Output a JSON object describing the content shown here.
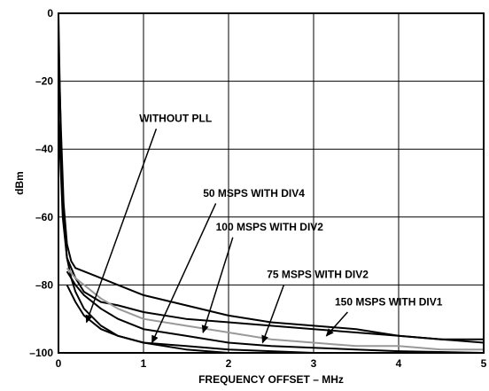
{
  "chart_data": {
    "type": "line",
    "xlabel": "FREQUENCY OFFSET – MHz",
    "ylabel": "dBm",
    "xlim": [
      0,
      5
    ],
    "ylim": [
      -100,
      0
    ],
    "x_ticks": [
      0,
      1,
      2,
      3,
      4,
      5
    ],
    "x_tick_labels": [
      "0",
      "1",
      "2",
      "3",
      "4",
      "5"
    ],
    "y_ticks": [
      0,
      -20,
      -40,
      -60,
      -80,
      -100
    ],
    "y_tick_labels": [
      "0",
      "–20",
      "–40",
      "–60",
      "–80",
      "–100"
    ],
    "grid": true,
    "colors": {
      "black": "#000000",
      "gray": "#999999"
    },
    "series": [
      {
        "color": "#000000",
        "points": [
          [
            0.0,
            0
          ],
          [
            0.01,
            -15
          ],
          [
            0.03,
            -40
          ],
          [
            0.06,
            -60
          ],
          [
            0.1,
            -72
          ],
          [
            0.15,
            -78
          ],
          [
            0.2,
            -82
          ],
          [
            0.3,
            -87
          ],
          [
            0.5,
            -92
          ],
          [
            0.7,
            -95
          ],
          [
            1.0,
            -97
          ],
          [
            1.5,
            -99
          ],
          [
            2.0,
            -100
          ]
        ]
      },
      {
        "color": "#000000",
        "points": [
          [
            0.0,
            -10
          ],
          [
            0.03,
            -35
          ],
          [
            0.06,
            -56
          ],
          [
            0.1,
            -68
          ],
          [
            0.15,
            -73
          ],
          [
            0.2,
            -75
          ],
          [
            0.3,
            -76
          ],
          [
            0.5,
            -78
          ],
          [
            0.7,
            -80
          ],
          [
            1.0,
            -83
          ],
          [
            1.5,
            -86
          ],
          [
            2.0,
            -89
          ],
          [
            2.5,
            -91
          ],
          [
            3.0,
            -92
          ],
          [
            3.5,
            -93
          ],
          [
            4.0,
            -95
          ],
          [
            4.5,
            -96
          ],
          [
            5.0,
            -97
          ]
        ]
      },
      {
        "color": "#000000",
        "points": [
          [
            0.0,
            -30
          ],
          [
            0.05,
            -60
          ],
          [
            0.1,
            -72
          ],
          [
            0.2,
            -78
          ],
          [
            0.3,
            -82
          ],
          [
            0.5,
            -85
          ],
          [
            0.7,
            -86
          ],
          [
            1.0,
            -88
          ],
          [
            1.5,
            -90
          ],
          [
            2.0,
            -91
          ],
          [
            2.5,
            -92
          ],
          [
            3.0,
            -93
          ],
          [
            3.5,
            -94
          ],
          [
            4.0,
            -95
          ],
          [
            4.5,
            -96
          ],
          [
            5.0,
            -96
          ]
        ]
      },
      {
        "color": "#999999",
        "points": [
          [
            0.1,
            -75
          ],
          [
            0.2,
            -78
          ],
          [
            0.3,
            -80
          ],
          [
            0.5,
            -84
          ],
          [
            0.7,
            -87
          ],
          [
            1.0,
            -90
          ],
          [
            1.5,
            -92
          ],
          [
            2.0,
            -94
          ],
          [
            2.5,
            -96
          ],
          [
            3.0,
            -97
          ],
          [
            3.5,
            -98
          ],
          [
            4.0,
            -98
          ],
          [
            4.5,
            -99
          ],
          [
            5.0,
            -99
          ]
        ]
      },
      {
        "color": "#000000",
        "points": [
          [
            0.1,
            -76
          ],
          [
            0.2,
            -80
          ],
          [
            0.3,
            -83
          ],
          [
            0.5,
            -87
          ],
          [
            0.7,
            -90
          ],
          [
            1.0,
            -93
          ],
          [
            1.5,
            -95
          ],
          [
            2.0,
            -97
          ],
          [
            2.5,
            -98
          ],
          [
            3.0,
            -98.5
          ],
          [
            3.5,
            -99
          ],
          [
            4.0,
            -99.5
          ],
          [
            5.0,
            -100
          ]
        ]
      },
      {
        "color": "#000000",
        "points": [
          [
            0.1,
            -80
          ],
          [
            0.2,
            -85
          ],
          [
            0.3,
            -89
          ],
          [
            0.5,
            -93
          ],
          [
            0.7,
            -95
          ],
          [
            1.0,
            -97
          ],
          [
            1.5,
            -98
          ],
          [
            2.0,
            -99
          ],
          [
            2.5,
            -99.5
          ],
          [
            3.0,
            -100
          ],
          [
            4.0,
            -100
          ],
          [
            5.0,
            -100
          ]
        ]
      }
    ],
    "annotations": [
      {
        "text": "WITHOUT PLL",
        "text_x": 0.95,
        "text_y": -32,
        "arrow_from": [
          1.15,
          -34
        ],
        "arrow_to": [
          0.33,
          -91
        ]
      },
      {
        "text": "50 MSPS WITH DIV4",
        "text_x": 1.7,
        "text_y": -54,
        "arrow_from": [
          1.85,
          -56
        ],
        "arrow_to": [
          1.1,
          -97
        ]
      },
      {
        "text": "100 MSPS WITH DIV2",
        "text_x": 1.85,
        "text_y": -64,
        "arrow_from": [
          2.05,
          -66
        ],
        "arrow_to": [
          1.7,
          -94
        ]
      },
      {
        "text": "75 MSPS WITH DIV2",
        "text_x": 2.45,
        "text_y": -78,
        "arrow_from": [
          2.65,
          -80
        ],
        "arrow_to": [
          2.4,
          -97
        ]
      },
      {
        "text": "150 MSPS WITH DIV1",
        "text_x": 3.25,
        "text_y": -86,
        "arrow_from": [
          3.4,
          -88
        ],
        "arrow_to": [
          3.15,
          -95
        ]
      }
    ]
  }
}
